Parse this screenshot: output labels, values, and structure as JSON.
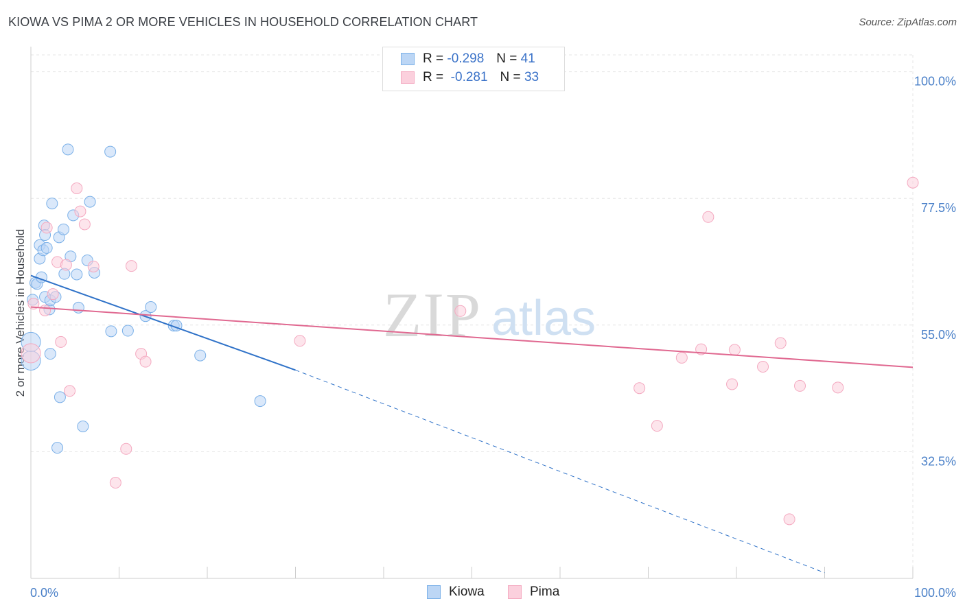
{
  "title": "KIOWA VS PIMA 2 OR MORE VEHICLES IN HOUSEHOLD CORRELATION CHART",
  "source": "Source: ZipAtlas.com",
  "watermark": {
    "zip": "ZIP",
    "atlas": "atlas"
  },
  "legend": {
    "kiowa": {
      "r_label": "R =",
      "r_value": "-0.298",
      "n_label": "N =",
      "n_value": "41"
    },
    "pima": {
      "r_label": "R =",
      "r_value": "-0.281",
      "n_label": "N =",
      "n_value": "33"
    }
  },
  "bottom_legend": {
    "kiowa": "Kiowa",
    "pima": "Pima"
  },
  "chart_data": {
    "type": "scatter",
    "title": "KIOWA VS PIMA 2 OR MORE VEHICLES IN HOUSEHOLD CORRELATION CHART",
    "xlabel": "",
    "ylabel": "2 or more Vehicles in Household",
    "xlim": [
      0,
      100
    ],
    "ylim": [
      10,
      103
    ],
    "x_tick_labels": [
      "0.0%",
      "100.0%"
    ],
    "y_ticks": [
      100.0,
      77.5,
      55.0,
      32.5
    ],
    "y_tick_labels": [
      "100.0%",
      "77.5%",
      "55.0%",
      "32.5%"
    ],
    "colors": {
      "kiowa": "#7ab0e8",
      "kiowa_line": "#2f72c8",
      "pima": "#f4a9c0",
      "pima_line": "#e06890",
      "tick_label": "#4a80c8"
    },
    "series": [
      {
        "name": "Kiowa",
        "points": [
          [
            0.2,
            59.5
          ],
          [
            0.5,
            62.5
          ],
          [
            0.7,
            62.3
          ],
          [
            1.0,
            66.8
          ],
          [
            1.0,
            69.2
          ],
          [
            1.2,
            63.5
          ],
          [
            1.4,
            68.3
          ],
          [
            1.5,
            72.7
          ],
          [
            1.6,
            71.0
          ],
          [
            1.6,
            60.0
          ],
          [
            1.8,
            68.7
          ],
          [
            2.1,
            57.8
          ],
          [
            2.2,
            49.9
          ],
          [
            2.2,
            59.4
          ],
          [
            2.4,
            76.6
          ],
          [
            2.8,
            60.0
          ],
          [
            3.0,
            33.2
          ],
          [
            3.2,
            70.6
          ],
          [
            3.3,
            42.2
          ],
          [
            3.7,
            72.0
          ],
          [
            3.8,
            64.1
          ],
          [
            4.2,
            86.2
          ],
          [
            4.5,
            67.2
          ],
          [
            4.8,
            74.5
          ],
          [
            5.2,
            64.0
          ],
          [
            5.4,
            58.1
          ],
          [
            5.9,
            37.0
          ],
          [
            6.4,
            66.5
          ],
          [
            6.7,
            76.9
          ],
          [
            7.2,
            64.3
          ],
          [
            9.0,
            85.8
          ],
          [
            9.1,
            53.9
          ],
          [
            11.0,
            54.0
          ],
          [
            13.0,
            56.6
          ],
          [
            13.6,
            58.2
          ],
          [
            16.2,
            54.9
          ],
          [
            16.5,
            54.9
          ],
          [
            19.2,
            49.6
          ],
          [
            26.0,
            41.5
          ],
          [
            0.0,
            48.7
          ],
          [
            0.0,
            52.0
          ]
        ]
      },
      {
        "name": "Pima",
        "points": [
          [
            0.3,
            58.8
          ],
          [
            1.6,
            57.6
          ],
          [
            1.8,
            72.3
          ],
          [
            2.5,
            60.5
          ],
          [
            3.0,
            66.2
          ],
          [
            3.4,
            52.0
          ],
          [
            4.0,
            65.7
          ],
          [
            4.4,
            43.3
          ],
          [
            5.2,
            79.3
          ],
          [
            5.6,
            75.2
          ],
          [
            6.1,
            72.9
          ],
          [
            7.1,
            65.4
          ],
          [
            9.6,
            27.0
          ],
          [
            10.8,
            33.0
          ],
          [
            11.4,
            65.5
          ],
          [
            12.5,
            49.9
          ],
          [
            13.0,
            48.5
          ],
          [
            30.5,
            52.2
          ],
          [
            48.7,
            57.5
          ],
          [
            69.0,
            43.8
          ],
          [
            71.0,
            37.1
          ],
          [
            73.8,
            49.2
          ],
          [
            76.0,
            50.7
          ],
          [
            76.8,
            74.2
          ],
          [
            79.5,
            44.5
          ],
          [
            79.8,
            50.6
          ],
          [
            83.0,
            47.6
          ],
          [
            85.0,
            51.8
          ],
          [
            86.0,
            20.5
          ],
          [
            87.2,
            44.2
          ],
          [
            91.5,
            43.9
          ],
          [
            100.0,
            80.3
          ],
          [
            0.0,
            50.0
          ]
        ]
      }
    ],
    "trend_lines": [
      {
        "name": "Kiowa",
        "x_start": 0,
        "y_start": 63.8,
        "x_solid_end": 30,
        "y_solid_end": 47.0,
        "x_dashed_end": 90,
        "y_dashed_end": 11.0
      },
      {
        "name": "Pima",
        "x_start": 0,
        "y_start": 58.2,
        "x_end": 100,
        "y_end": 47.5
      }
    ]
  }
}
